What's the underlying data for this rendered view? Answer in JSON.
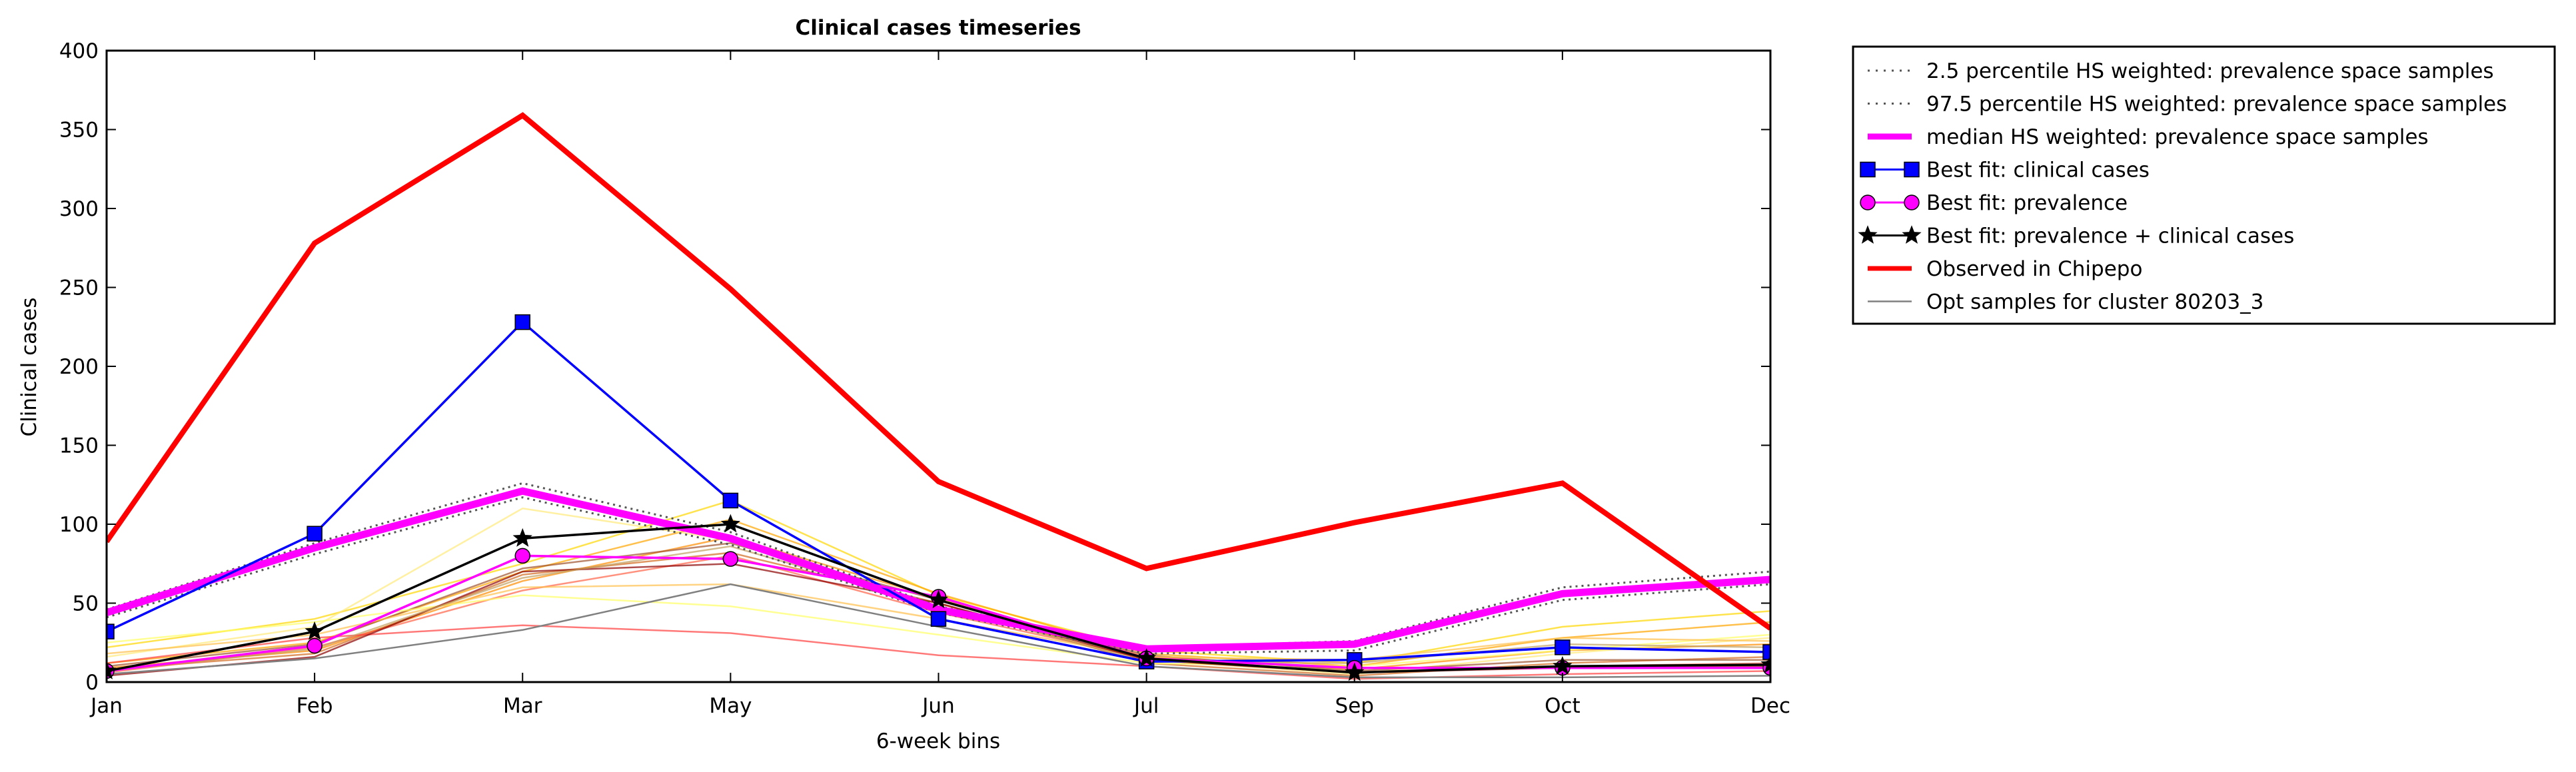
{
  "chart_data": {
    "type": "line",
    "title": "Clinical cases timeseries",
    "xlabel": "6-week bins",
    "ylabel": "Clinical cases",
    "ylim": [
      0,
      400
    ],
    "yticks": [
      0,
      50,
      100,
      150,
      200,
      250,
      300,
      350,
      400
    ],
    "categories": [
      "Jan",
      "Feb",
      "Mar",
      "May",
      "Jun",
      "Jul",
      "Sep",
      "Oct",
      "Dec"
    ],
    "grid": false,
    "legend_position": "outside-right",
    "series": [
      {
        "name": "2.5 percentile HS weighted: prevalence space samples",
        "style": "dotted",
        "color": "#555555",
        "values": [
          41,
          81,
          117,
          87,
          44,
          18,
          20,
          52,
          62
        ]
      },
      {
        "name": "97.5 percentile HS weighted: prevalence space samples",
        "style": "dotted",
        "color": "#555555",
        "values": [
          46,
          88,
          126,
          95,
          48,
          22,
          26,
          60,
          70
        ]
      },
      {
        "name": "median HS weighted: prevalence space samples",
        "style": "thick",
        "color": "#ff00ff",
        "values": [
          44,
          85,
          121,
          91,
          46,
          21,
          24,
          56,
          65
        ]
      },
      {
        "name": "Best fit: clinical cases",
        "style": "square-marker",
        "color": "#0000ff",
        "values": [
          32,
          94,
          228,
          115,
          40,
          13,
          14,
          22,
          19
        ]
      },
      {
        "name": "Best fit: prevalence",
        "style": "circle-marker",
        "color": "#ff00ff",
        "values": [
          7,
          23,
          80,
          78,
          54,
          15,
          9,
          9,
          9
        ]
      },
      {
        "name": "Best fit: prevalence + clinical cases",
        "style": "star-marker",
        "color": "#000000",
        "values": [
          7,
          32,
          91,
          100,
          52,
          15,
          6,
          10,
          11
        ]
      },
      {
        "name": "Observed in Chipepo",
        "style": "thick",
        "color": "#ff0000",
        "values": [
          89,
          278,
          359,
          249,
          127,
          72,
          101,
          126,
          34
        ]
      },
      {
        "name": "Opt samples for cluster 80203_3",
        "style": "thin",
        "color": "#808080",
        "values": [
          5,
          15,
          33,
          62,
          35,
          10,
          3,
          3,
          4
        ]
      }
    ],
    "sample_lines": [
      {
        "color": "#ffd700",
        "values": [
          22,
          40,
          75,
          115,
          55,
          20,
          12,
          35,
          45
        ]
      },
      {
        "color": "#ffa500",
        "values": [
          12,
          25,
          70,
          103,
          56,
          18,
          10,
          28,
          38
        ]
      },
      {
        "color": "#ff8c00",
        "values": [
          9,
          20,
          64,
          92,
          53,
          16,
          8,
          20,
          24
        ]
      },
      {
        "color": "#ffe97a",
        "values": [
          16,
          35,
          110,
          90,
          48,
          14,
          5,
          18,
          28
        ]
      },
      {
        "color": "#d2691e",
        "values": [
          8,
          18,
          68,
          82,
          50,
          12,
          4,
          12,
          16
        ]
      },
      {
        "color": "#ff6347",
        "values": [
          6,
          22,
          58,
          80,
          44,
          15,
          6,
          10,
          12
        ]
      },
      {
        "color": "#a0522d",
        "values": [
          10,
          24,
          72,
          88,
          52,
          17,
          7,
          14,
          14
        ]
      },
      {
        "color": "#ff4040",
        "values": [
          12,
          28,
          36,
          31,
          17,
          10,
          2,
          5,
          7
        ]
      },
      {
        "color": "#ffff66",
        "values": [
          25,
          38,
          55,
          48,
          30,
          12,
          10,
          20,
          30
        ]
      },
      {
        "color": "#ffc04d",
        "values": [
          18,
          30,
          60,
          62,
          40,
          16,
          14,
          28,
          26
        ]
      },
      {
        "color": "#8b0000",
        "values": [
          4,
          16,
          70,
          75,
          50,
          14,
          6,
          9,
          10
        ]
      },
      {
        "color": "#c0a060",
        "values": [
          7,
          21,
          66,
          86,
          48,
          13,
          12,
          24,
          22
        ]
      }
    ]
  }
}
